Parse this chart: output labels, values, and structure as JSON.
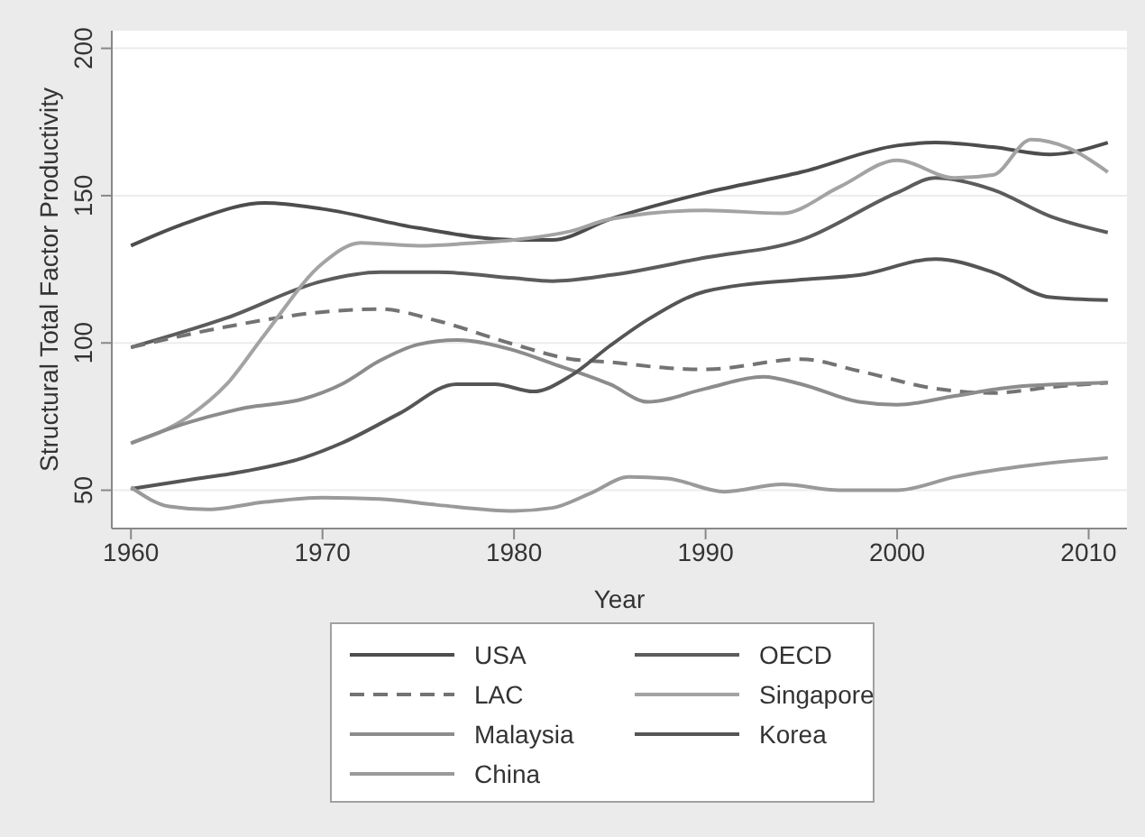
{
  "chart_data": {
    "type": "line",
    "xlabel": "Year",
    "ylabel": "Structural Total Factor Productivity",
    "xlim": [
      1959,
      2012
    ],
    "ylim": [
      37,
      206
    ],
    "xticks": [
      1960,
      1970,
      1980,
      1990,
      2000,
      2010
    ],
    "yticks": [
      50,
      100,
      150,
      200
    ],
    "grid": "y",
    "legend": "bottom",
    "marker": "none",
    "line_style": "solid",
    "series": [
      {
        "name": "USA",
        "color": "#4d4d4d",
        "x": [
          1960,
          1963,
          1967,
          1970,
          1975,
          1980,
          1982,
          1985,
          1990,
          1995,
          2000,
          2002,
          2005,
          2008,
          2011
        ],
        "values": [
          133,
          141,
          147.5,
          145.5,
          139,
          135,
          135,
          142,
          151,
          158,
          167,
          168,
          166.5,
          164,
          168
        ]
      },
      {
        "name": "OECD",
        "color": "#5c5c5c",
        "x": [
          1960,
          1965,
          1970,
          1973,
          1976,
          1980,
          1982,
          1985,
          1990,
          1995,
          2000,
          2002,
          2005,
          2008,
          2011
        ],
        "values": [
          98.5,
          108.5,
          121,
          124,
          124,
          122,
          121,
          123,
          129,
          135,
          151,
          156,
          152,
          143,
          137.5
        ]
      },
      {
        "name": "LAC",
        "color": "#737373",
        "line_style": "dashed",
        "x": [
          1960,
          1965,
          1970,
          1973,
          1976,
          1980,
          1983,
          1985,
          1988,
          1990,
          1995,
          1998,
          2002,
          2005,
          2008,
          2011
        ],
        "values": [
          98.5,
          105.5,
          110.5,
          111.5,
          107.5,
          99.5,
          94.5,
          93.5,
          91.5,
          91,
          94.5,
          90.5,
          84.5,
          83,
          85,
          86.5
        ]
      },
      {
        "name": "Singapore",
        "color": "#a3a3a3",
        "x": [
          1960,
          1963,
          1965,
          1967,
          1970,
          1972,
          1975,
          1978,
          1980,
          1983,
          1985,
          1990,
          1994,
          1997,
          2000,
          2003,
          2005,
          2007,
          2009,
          2011
        ],
        "values": [
          66,
          75,
          86,
          103,
          127,
          134,
          133,
          134,
          135,
          138,
          142,
          145,
          144,
          153,
          162,
          156,
          157,
          169,
          166,
          158
        ]
      },
      {
        "name": "Malaysia",
        "color": "#8c8c8c",
        "x": [
          1960,
          1963,
          1966,
          1969,
          1971,
          1973,
          1975,
          1977,
          1980,
          1982,
          1985,
          1987,
          1990,
          1993,
          1995,
          1998,
          2000,
          2003,
          2006,
          2011
        ],
        "values": [
          66,
          73,
          78,
          81,
          86,
          94,
          99.5,
          101,
          97.5,
          93,
          86,
          80,
          84.5,
          88.5,
          86,
          80,
          79,
          82,
          85,
          86.5
        ]
      },
      {
        "name": "Korea",
        "color": "#555555",
        "x": [
          1960,
          1963,
          1966,
          1969,
          1971,
          1974,
          1977,
          1979,
          1981,
          1983,
          1985,
          1987,
          1990,
          1995,
          1998,
          2002,
          2005,
          2008,
          2011
        ],
        "values": [
          50.5,
          53.5,
          56.5,
          61,
          66,
          76,
          86,
          86,
          83.5,
          89,
          99,
          108,
          117.5,
          121.5,
          123,
          128.5,
          124,
          115.5,
          114.5
        ]
      },
      {
        "name": "China",
        "color": "#9a9a9a",
        "x": [
          1960,
          1962,
          1964,
          1967,
          1970,
          1973,
          1976,
          1980,
          1982,
          1984,
          1986,
          1988,
          1991,
          1994,
          1997,
          2000,
          2003,
          2007,
          2011
        ],
        "values": [
          51,
          44.5,
          43.5,
          46,
          47.5,
          47,
          45,
          43,
          44,
          49,
          54.5,
          54,
          49.5,
          52,
          50,
          50,
          54.5,
          58.5,
          61
        ]
      }
    ]
  }
}
